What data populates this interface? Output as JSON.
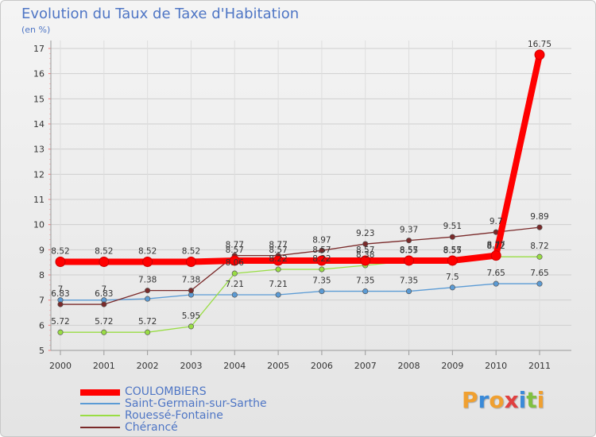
{
  "header": {
    "title": "Evolution du Taux de Taxe d'Habitation",
    "unit": "(en %)"
  },
  "logo": {
    "text": "Proxiti"
  },
  "colors": {
    "COULOMBIERS": "#ff0000",
    "Saint-Germain-sur-Sarthe": "#5b9bd5",
    "Rouessé-Fontaine": "#99dd44",
    "Chérancé": "#7a2a2a",
    "text": "#4f76c5",
    "grid": "#cccccc"
  },
  "chart_data": {
    "type": "line",
    "title": "Evolution du Taux de Taxe d'Habitation",
    "ylabel": "(en %)",
    "ylim": [
      5,
      17
    ],
    "yticks": [
      5,
      6,
      7,
      8,
      9,
      10,
      11,
      12,
      13,
      14,
      15,
      16,
      17
    ],
    "x": [
      "2000",
      "2001",
      "2002",
      "2003",
      "2004",
      "2005",
      "2006",
      "2007",
      "2008",
      "2009",
      "2010",
      "2011"
    ],
    "grid": true,
    "legend_position": "bottom-left",
    "series": [
      {
        "name": "COULOMBIERS",
        "values": [
          8.52,
          8.52,
          8.52,
          8.52,
          8.57,
          8.57,
          8.57,
          8.57,
          8.57,
          8.57,
          8.77,
          16.75
        ],
        "labels": [
          "8.52",
          "8.52",
          "8.52",
          "8.52",
          "8.57",
          "8.57",
          "8.57",
          "8.57",
          "8.57",
          "8.57",
          "8.77",
          "16.75"
        ]
      },
      {
        "name": "Saint-Germain-sur-Sarthe",
        "values": [
          7,
          7,
          7.05,
          7.21,
          7.21,
          7.21,
          7.35,
          7.35,
          7.35,
          7.5,
          7.65,
          7.65
        ],
        "labels": [
          "7",
          "7",
          "",
          "",
          "7.21",
          "7.21",
          "7.35",
          "7.35",
          "7.35",
          "7.5",
          "7.65",
          "7.65"
        ]
      },
      {
        "name": "Rouessé-Fontaine",
        "values": [
          5.72,
          5.72,
          5.72,
          5.95,
          8.06,
          8.22,
          8.22,
          8.38,
          8.55,
          8.55,
          8.72,
          8.72
        ],
        "labels": [
          "5.72",
          "5.72",
          "5.72",
          "5.95",
          "8.06",
          "8.22",
          "8.22",
          "8.38",
          "8.55",
          "8.55",
          "8.72",
          "8.72"
        ]
      },
      {
        "name": "Chérancé",
        "values": [
          6.83,
          6.83,
          7.38,
          7.38,
          8.77,
          8.77,
          8.97,
          9.23,
          9.37,
          9.51,
          9.7,
          9.89
        ],
        "labels": [
          "6.83",
          "6.83",
          "7.38",
          "7.38",
          "8.77",
          "8.77",
          "8.97",
          "9.23",
          "9.37",
          "9.51",
          "9.7",
          "9.89"
        ]
      }
    ]
  }
}
